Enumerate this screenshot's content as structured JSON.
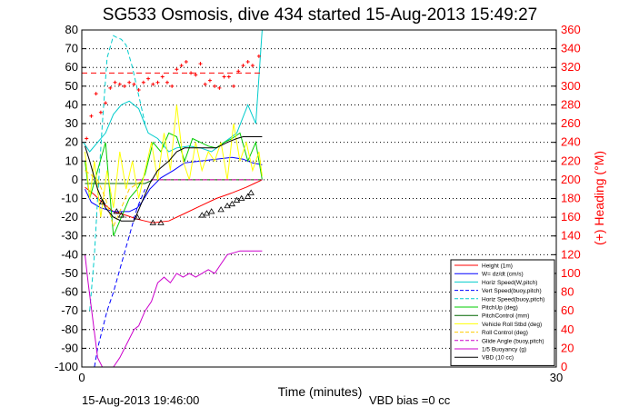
{
  "chart_data": {
    "type": "line",
    "title": "SG533 Osmosis, dive 434 started 15-Aug-2013 15:49:27",
    "xlabel": "Time (minutes)",
    "ylabel_right": "(+) Heading (°M)",
    "footer_left": "15-Aug-2013 19:46:00",
    "footer_right": "VBD bias =0 cc",
    "xlim": [
      0,
      30
    ],
    "ylim": [
      -100,
      80
    ],
    "ylim_right": [
      0,
      360
    ],
    "x_ticks": [
      "0",
      "30"
    ],
    "y_ticks": [
      "80",
      "70",
      "60",
      "50",
      "40",
      "30",
      "20",
      "10",
      "0",
      "-10",
      "-20",
      "-30",
      "-40",
      "-50",
      "-60",
      "-70",
      "-80",
      "-90",
      "-100"
    ],
    "y_ticks_right": [
      "360",
      "340",
      "320",
      "300",
      "280",
      "260",
      "240",
      "220",
      "200",
      "180",
      "160",
      "140",
      "120",
      "100",
      "80",
      "60",
      "40",
      "20",
      "0"
    ],
    "grid": "horizontal dotted",
    "legend_position": "bottom-right",
    "series": [
      {
        "name": "Height (1m)",
        "color": "#ff0000",
        "style": "solid",
        "x": [
          0.2,
          0.8,
          1.4,
          2.0,
          2.8,
          3.5,
          4.5,
          5.5,
          6.5,
          7.5,
          8.5,
          9.5,
          10.4,
          10.9,
          11.4
        ],
        "y": [
          -4,
          -8,
          -13,
          -17,
          -19,
          -21,
          -23,
          -22,
          -18,
          -14,
          -10,
          -7,
          -4,
          -2,
          0
        ]
      },
      {
        "name": "W= dz/dt (cm/s)",
        "color": "#0000ff",
        "style": "solid",
        "x": [
          0.2,
          0.6,
          1.2,
          2.0,
          3.0,
          3.5,
          3.8,
          4.3,
          5.0,
          5.8,
          6.5,
          7.5,
          8.5,
          9.5,
          10.2,
          10.8,
          11.4
        ],
        "y": [
          -5,
          -12,
          -15,
          -17,
          -17,
          -15,
          -12,
          -5,
          1,
          5,
          9,
          10,
          11,
          12,
          11,
          9,
          8
        ]
      },
      {
        "name": "Horiz Speed(W,pitch)",
        "color": "#00cccc",
        "style": "solid",
        "x": [
          0.1,
          0.5,
          1.0,
          1.5,
          2.0,
          2.5,
          3.0,
          3.6,
          4.2,
          4.8,
          5.5,
          6.0,
          6.8,
          7.5,
          8.2,
          9.0,
          9.8,
          10.5,
          11.0,
          11.4
        ],
        "y": [
          20,
          15,
          20,
          25,
          35,
          40,
          42,
          38,
          25,
          22,
          15,
          17,
          18,
          17,
          15,
          20,
          25,
          40,
          30,
          80
        ]
      },
      {
        "name": "Vert Speed(buoy,pitch)",
        "color": "#0000ff",
        "style": "dashed",
        "x": [
          0.8,
          1.0,
          1.3,
          1.6,
          2.0,
          2.5,
          3.0,
          3.5,
          4.0
        ],
        "y": [
          -100,
          -90,
          -80,
          -70,
          -60,
          -45,
          -30,
          -15,
          -5
        ]
      },
      {
        "name": "Horiz Speed(buoy,pitch)",
        "color": "#00cccc",
        "style": "dashed",
        "x": [
          0.5,
          0.8,
          1.0,
          1.3,
          1.6,
          2.0,
          2.2,
          2.5,
          2.8,
          3.2,
          3.6,
          4.0
        ],
        "y": [
          -70,
          -40,
          -10,
          30,
          65,
          77,
          76,
          75,
          72,
          60,
          45,
          30
        ]
      },
      {
        "name": "PitchUp (deg)",
        "color": "#00cc00",
        "style": "solid",
        "x": [
          0.2,
          0.5,
          1.0,
          1.5,
          2.0,
          2.5,
          3.0,
          3.5,
          4.0,
          4.5,
          5.0,
          5.5,
          6.0,
          6.5,
          7.0,
          7.5,
          8.0,
          8.5,
          9.0,
          9.5,
          10.0,
          10.5,
          11.0,
          11.4
        ],
        "y": [
          10,
          -10,
          5,
          20,
          -30,
          -20,
          -10,
          -5,
          3,
          20,
          15,
          25,
          23,
          10,
          22,
          20,
          18,
          17,
          20,
          22,
          25,
          10,
          20,
          0
        ]
      },
      {
        "name": "PitchControl (mm)",
        "color": "#006600",
        "style": "solid",
        "x": [
          0.2,
          0.5,
          1.0,
          1.5,
          2.0,
          2.5,
          3.0,
          3.3,
          4.0,
          4.5,
          5.5,
          6.5,
          7.5,
          8.0,
          8.5,
          9.0,
          9.5,
          10.0,
          10.5,
          11.4
        ],
        "y": [
          -2,
          -2,
          -2,
          -2,
          -2,
          -2,
          -2,
          -2,
          -2,
          0,
          0,
          0,
          0,
          0,
          0,
          0,
          0,
          0,
          0,
          0
        ]
      },
      {
        "name": "Vehicle Roll Stbd (deg)",
        "color": "#ffff00",
        "style": "solid",
        "x": [
          0.2,
          0.5,
          0.8,
          1.2,
          1.6,
          2.0,
          2.4,
          2.8,
          3.2,
          3.6,
          4.0,
          4.4,
          4.8,
          5.2,
          5.6,
          6.0,
          6.4,
          6.8,
          7.2,
          7.6,
          8.0,
          8.4,
          8.8,
          9.2,
          9.6,
          10.0,
          10.4,
          10.8,
          11.2,
          11.4
        ],
        "y": [
          15,
          -10,
          10,
          -20,
          5,
          -15,
          15,
          -5,
          10,
          -10,
          5,
          20,
          0,
          25,
          5,
          40,
          10,
          0,
          20,
          5,
          15,
          10,
          20,
          0,
          30,
          10,
          20,
          5,
          15,
          2
        ]
      },
      {
        "name": "Roll Control (deg)",
        "color": "#ffcc00",
        "style": "dashed",
        "x": [
          0.2,
          1.0,
          1.5,
          2.0,
          2.5,
          3.0,
          3.5,
          4.0,
          4.5,
          5.0,
          5.5,
          6.0,
          7.0,
          8.0,
          9.0,
          10.0,
          11.4
        ],
        "y": [
          5,
          0,
          -10,
          -25,
          -15,
          -5,
          -2,
          0,
          0,
          0,
          0,
          0,
          0,
          0,
          0,
          0,
          0
        ]
      },
      {
        "name": "Glide Angle (buoy,pitch)",
        "color": "#cc00cc",
        "style": "dashed",
        "x": [
          3.5,
          11.4
        ],
        "y": [
          0,
          0
        ]
      },
      {
        "name": "1/5 Buoyancy (g)",
        "color": "#cc00cc",
        "style": "solid",
        "x": [
          0.2,
          0.4,
          0.7,
          1.0,
          1.3,
          1.6,
          2.0,
          2.4,
          2.7,
          3.0,
          3.3,
          3.6,
          4.0,
          4.4,
          4.8,
          5.2,
          5.6,
          6.0,
          6.4,
          6.8,
          7.2,
          7.6,
          8.0,
          8.4,
          8.8,
          9.2,
          9.6,
          10.0,
          10.4,
          11.4
        ],
        "y": [
          -40,
          -55,
          -75,
          -95,
          -105,
          -105,
          -100,
          -95,
          -90,
          -85,
          -80,
          -78,
          -70,
          -65,
          -55,
          -52,
          -55,
          -50,
          -52,
          -50,
          -52,
          -50,
          -48,
          -50,
          -45,
          -40,
          -39,
          -38,
          -38,
          -38
        ]
      },
      {
        "name": "VBD (10 cc)",
        "color": "#000000",
        "style": "solid",
        "x": [
          0.2,
          0.5,
          1.0,
          1.5,
          2.0,
          2.5,
          3.0,
          3.3,
          3.8,
          4.3,
          4.8,
          5.5,
          6.0,
          6.5,
          7.5,
          8.5,
          9.2,
          9.8,
          10.2,
          10.8,
          11.4
        ],
        "y": [
          18,
          10,
          -5,
          -15,
          -20,
          -22,
          -22,
          -22,
          -12,
          -2,
          5,
          10,
          15,
          17,
          17,
          17,
          20,
          22,
          23,
          23,
          23
        ]
      }
    ],
    "heading_series": {
      "name": "Heading",
      "axis": "right",
      "color": "#ff0000",
      "marker": "+",
      "x": [
        0.3,
        0.6,
        0.9,
        1.2,
        1.5,
        1.8,
        2.1,
        2.4,
        2.7,
        3.0,
        3.3,
        3.6,
        3.9,
        4.2,
        4.5,
        4.8,
        5.1,
        5.4,
        5.7,
        6.0,
        6.3,
        6.6,
        6.9,
        7.2,
        7.5,
        7.8,
        8.1,
        8.4,
        8.7,
        9.0,
        9.3,
        9.6,
        9.9,
        10.2,
        10.5,
        10.8,
        11.2
      ],
      "y": [
        244,
        268,
        292,
        272,
        282,
        298,
        304,
        302,
        300,
        304,
        302,
        296,
        304,
        308,
        302,
        304,
        310,
        304,
        300,
        318,
        322,
        326,
        314,
        312,
        324,
        302,
        306,
        300,
        298,
        310,
        310,
        300,
        316,
        322,
        326,
        322,
        332
      ]
    },
    "reference_line": {
      "name": "heading reference",
      "axis": "right",
      "color": "#ff0000",
      "style": "dashed",
      "x": [
        0,
        11.4
      ],
      "y": [
        314,
        314
      ]
    },
    "markers": {
      "name": "depth markers",
      "color": "#000000",
      "x": [
        1.3,
        2.2,
        2.5,
        3.5,
        4.5,
        5.0,
        7.6,
        7.9,
        8.2,
        8.8,
        9.2,
        9.5,
        9.8,
        10.1,
        10.5,
        10.7
      ],
      "y": [
        -12,
        -17,
        -19,
        -20,
        -23,
        -23,
        -19,
        -18,
        -17,
        -16,
        -14,
        -13,
        -11,
        -10,
        -9,
        -7
      ]
    }
  }
}
